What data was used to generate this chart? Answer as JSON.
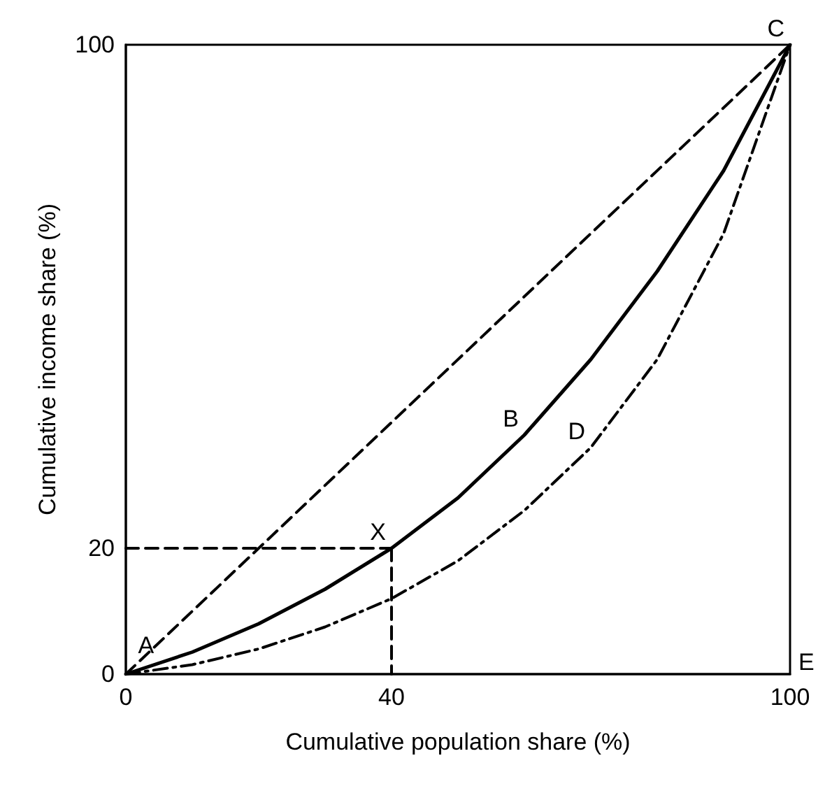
{
  "chart_data": {
    "type": "line",
    "xlabel": "Cumulative population share (%)",
    "ylabel": "Cumulative income share (%)",
    "xlim": [
      0,
      100
    ],
    "ylim": [
      0,
      100
    ],
    "xticks": [
      0,
      40,
      100
    ],
    "yticks": [
      0,
      20,
      100
    ],
    "grid": false,
    "marker": "none",
    "series": [
      {
        "color": "#000000",
        "line_style": "dashed",
        "x": [
          0,
          100
        ],
        "values": [
          0,
          100
        ]
      },
      {
        "color": "#000000",
        "line_style": "solid",
        "x": [
          0,
          10,
          20,
          30,
          40,
          50,
          60,
          70,
          80,
          90,
          100
        ],
        "values": [
          0,
          3.5,
          8,
          13.5,
          20,
          28,
          38,
          50,
          64,
          80,
          100
        ]
      },
      {
        "color": "#000000",
        "line_style": "dashdot",
        "x": [
          0,
          10,
          20,
          30,
          40,
          50,
          60,
          70,
          80,
          90,
          100
        ],
        "values": [
          0,
          1.5,
          4,
          7.5,
          12,
          18,
          26,
          36,
          50,
          70,
          100
        ]
      },
      {
        "color": "#000000",
        "line_style": "dashed",
        "x": [
          0,
          40
        ],
        "values": [
          20,
          20
        ]
      },
      {
        "color": "#000000",
        "line_style": "dashed",
        "x": [
          40,
          40
        ],
        "values": [
          20,
          0
        ]
      }
    ],
    "annotations": [
      {
        "text": "A",
        "x": 1,
        "y": 2
      },
      {
        "text": "X",
        "x": 40,
        "y": 20
      },
      {
        "text": "B",
        "x": 60,
        "y": 38
      },
      {
        "text": "D",
        "x": 70,
        "y": 36
      },
      {
        "text": "C",
        "x": 100,
        "y": 100
      },
      "E"
    ]
  }
}
